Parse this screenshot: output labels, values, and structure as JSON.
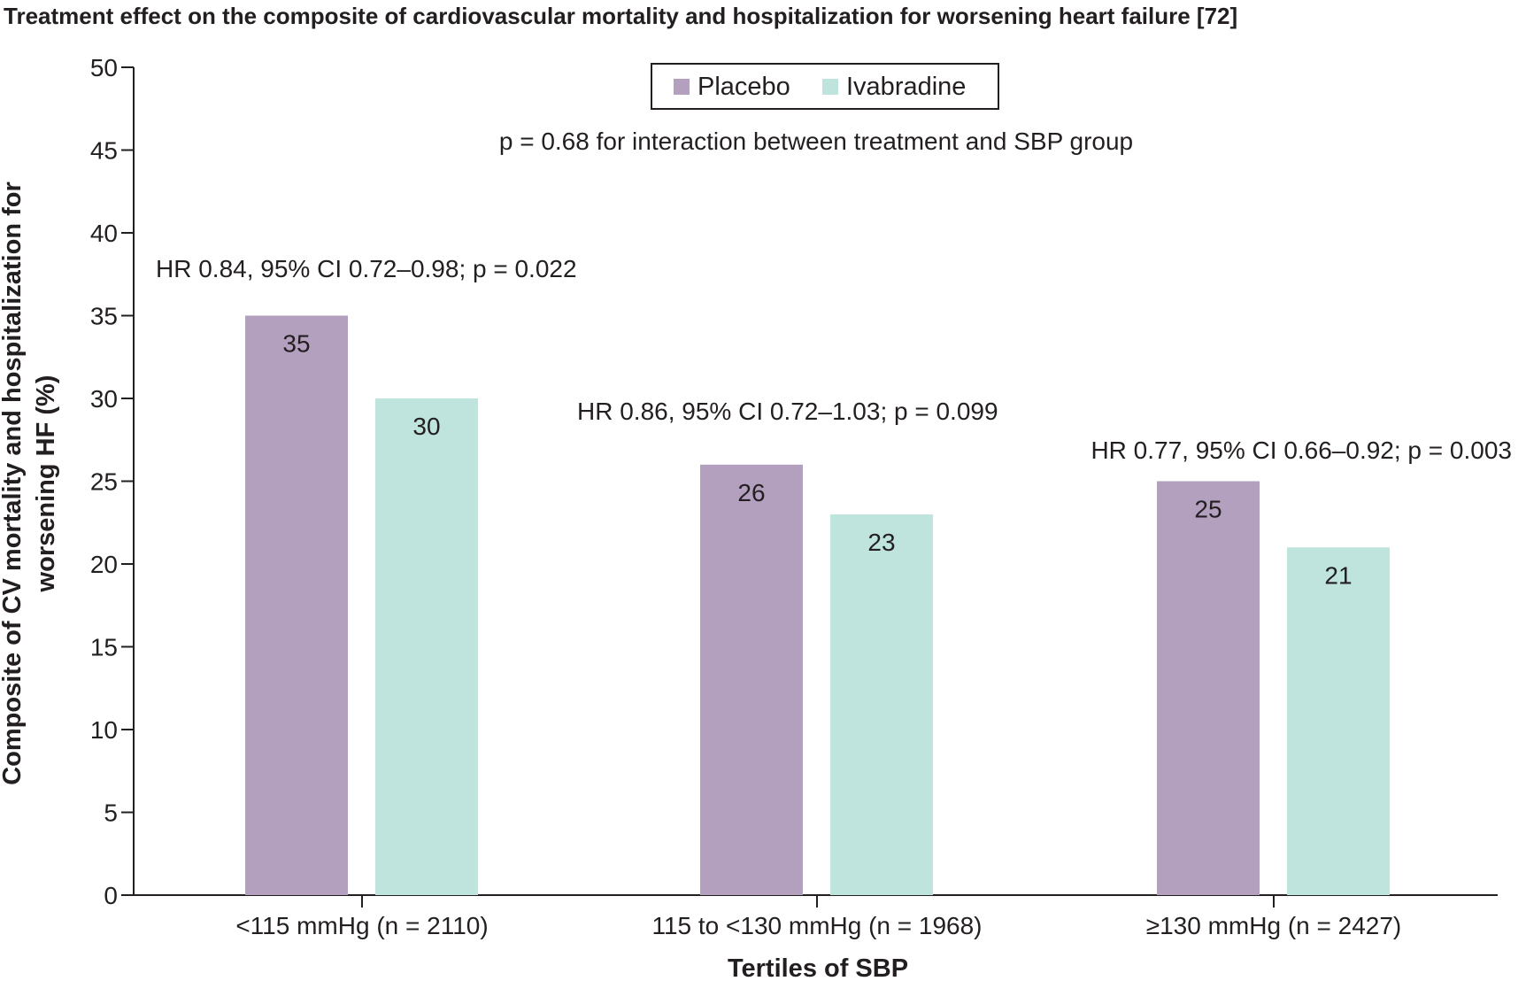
{
  "chart_data": {
    "type": "bar",
    "title": "Treatment effect on the composite of cardiovascular mortality and hospitalization for worsening heart failure [72]",
    "xlabel": "Tertiles of SBP",
    "ylabel": [
      "Composite of CV mortality and hospitalization for",
      "worsening HF (%)"
    ],
    "ylim": [
      0,
      50
    ],
    "yticks": [
      0,
      5,
      10,
      15,
      20,
      25,
      30,
      35,
      40,
      45,
      50
    ],
    "categories": [
      "<115 mmHg (n = 2110)",
      "115 to <130 mmHg (n = 1968)",
      "≥130 mmHg (n = 2427)"
    ],
    "series": [
      {
        "name": "Placebo",
        "color": "#b3a0bf",
        "values": [
          35,
          26,
          25
        ]
      },
      {
        "name": "Ivabradine",
        "color": "#bfe3dd",
        "values": [
          30,
          23,
          21
        ]
      }
    ],
    "group_annotations": [
      "HR 0.84, 95% CI 0.72–0.98; p = 0.022",
      "HR 0.86, 95% CI 0.72–1.03; p = 0.099",
      "HR 0.77, 95% CI 0.66–0.92; p = 0.003"
    ],
    "interaction_note": "p = 0.68 for interaction between treatment and SBP group",
    "legend_placement": "top-center",
    "grid": false
  }
}
